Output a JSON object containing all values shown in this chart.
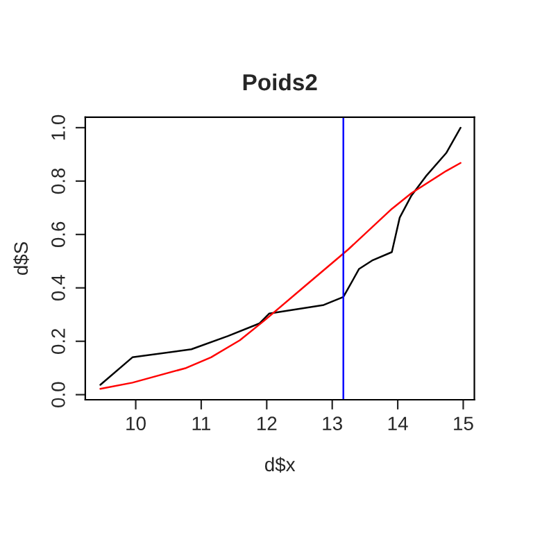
{
  "chart_data": {
    "type": "line",
    "title": "Poids2",
    "xlabel": "d$x",
    "ylabel": "d$S",
    "series": [
      {
        "color": "#000000",
        "x": [
          9.46,
          9.95,
          10.85,
          11.41,
          11.89,
          12.04,
          12.87,
          13.17,
          13.41,
          13.62,
          13.91,
          14.03,
          14.21,
          14.44,
          14.74,
          14.96
        ],
        "values": [
          0.037,
          0.14,
          0.17,
          0.22,
          0.267,
          0.304,
          0.336,
          0.366,
          0.471,
          0.504,
          0.534,
          0.663,
          0.746,
          0.821,
          0.905,
          1.0
        ]
      },
      {
        "color": "#ff0000",
        "x": [
          9.46,
          9.95,
          10.77,
          11.15,
          11.59,
          11.97,
          12.57,
          13.24,
          13.91,
          14.21,
          14.74,
          14.96
        ],
        "values": [
          0.022,
          0.045,
          0.1,
          0.14,
          0.204,
          0.279,
          0.404,
          0.543,
          0.696,
          0.755,
          0.838,
          0.868
        ]
      }
    ],
    "ref_lines": [
      {
        "axis": "x",
        "value": 13.17,
        "color": "#0000ff"
      }
    ],
    "xlim": [
      9.23,
      15.17
    ],
    "ylim": [
      -0.019,
      1.039
    ],
    "xticks": [
      10,
      11,
      12,
      13,
      14,
      15
    ],
    "yticks": [
      {
        "value": 0,
        "label": "0.0"
      },
      {
        "value": 0.2,
        "label": "0.2"
      },
      {
        "value": 0.4,
        "label": "0.4"
      },
      {
        "value": 0.6,
        "label": "0.6"
      },
      {
        "value": 0.8,
        "label": "0.8"
      },
      {
        "value": 1,
        "label": "1.0"
      }
    ],
    "grid": false,
    "legend": false
  }
}
